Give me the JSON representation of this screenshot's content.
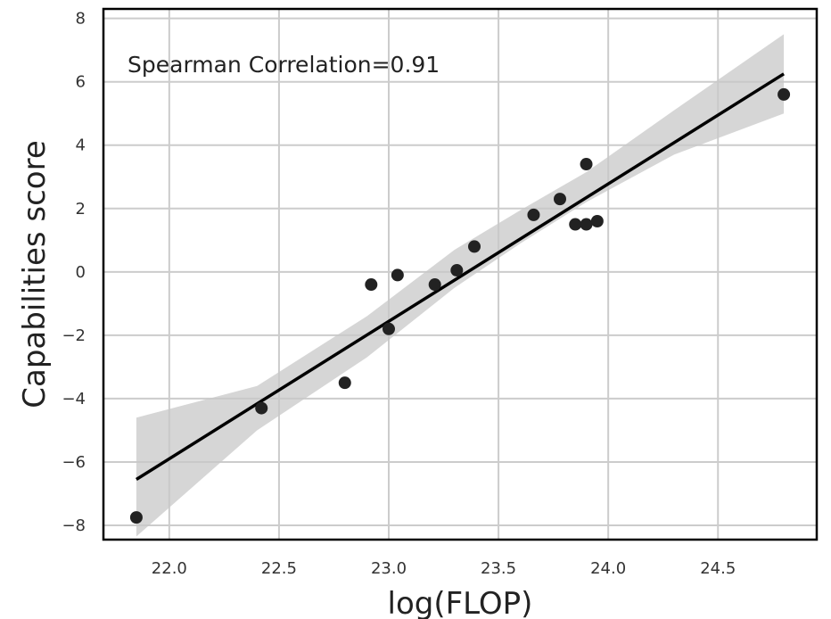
{
  "chart_data": {
    "type": "scatter",
    "title": "",
    "xlabel": "log(FLOP)",
    "ylabel": "Capabilities score",
    "xlim": [
      21.7,
      24.95
    ],
    "ylim": [
      -8.45,
      8.3
    ],
    "x_ticks": [
      22.0,
      22.5,
      23.0,
      23.5,
      24.0,
      24.5
    ],
    "x_tick_labels": [
      "22.0",
      "22.5",
      "23.0",
      "23.5",
      "24.0",
      "24.5"
    ],
    "y_ticks": [
      -8,
      -6,
      -4,
      -2,
      0,
      2,
      4,
      6,
      8
    ],
    "y_tick_labels": [
      "−8",
      "−6",
      "−4",
      "−2",
      "0",
      "2",
      "4",
      "6",
      "8"
    ],
    "grid": true,
    "annotation": "Spearman Correlation=0.91",
    "points": [
      {
        "x": 21.85,
        "y": -7.75
      },
      {
        "x": 22.42,
        "y": -4.3
      },
      {
        "x": 22.8,
        "y": -3.5
      },
      {
        "x": 22.92,
        "y": -0.4
      },
      {
        "x": 23.0,
        "y": -1.8
      },
      {
        "x": 23.04,
        "y": -0.1
      },
      {
        "x": 23.21,
        "y": -0.4
      },
      {
        "x": 23.31,
        "y": 0.05
      },
      {
        "x": 23.39,
        "y": 0.8
      },
      {
        "x": 23.66,
        "y": 1.8
      },
      {
        "x": 23.78,
        "y": 2.3
      },
      {
        "x": 23.85,
        "y": 1.5
      },
      {
        "x": 23.9,
        "y": 1.5
      },
      {
        "x": 23.9,
        "y": 3.4
      },
      {
        "x": 23.95,
        "y": 1.6
      },
      {
        "x": 24.8,
        "y": 5.6
      }
    ],
    "regression_line": {
      "x": [
        21.85,
        24.8
      ],
      "y": [
        -6.55,
        6.25
      ]
    },
    "confidence_band": {
      "x": [
        21.85,
        22.4,
        22.9,
        23.3,
        23.6,
        23.9,
        24.3,
        24.8
      ],
      "upper": [
        -4.6,
        -3.6,
        -1.4,
        0.7,
        1.95,
        3.15,
        5.1,
        7.5
      ],
      "lower": [
        -8.35,
        -5.0,
        -2.7,
        -0.5,
        0.9,
        2.2,
        3.7,
        5.0
      ]
    },
    "colors": {
      "points": "#222222",
      "line": "#000000",
      "band": "#c8c8c8",
      "grid": "#cccccc",
      "frame": "#000000"
    }
  }
}
